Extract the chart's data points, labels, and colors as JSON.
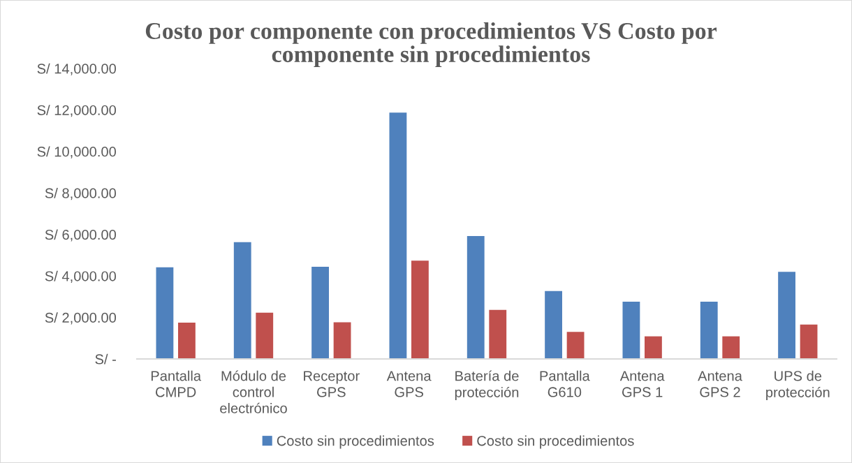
{
  "chart_data": {
    "type": "bar",
    "title": "Costo por componente con procedimientos VS Costo por\ncomponente sin procedimientos",
    "categories": [
      "Pantalla\nCMPD",
      "Módulo de\ncontrol\nelectrónico",
      "Receptor\nGPS",
      "Antena\nGPS",
      "Batería de\nprotección",
      "Pantalla\nG610",
      "Antena\nGPS 1",
      "Antena\nGPS 2",
      "UPS de\nprotección"
    ],
    "series": [
      {
        "name": "Costo sin procedimientos",
        "color": "#4f81bd",
        "values": [
          4420,
          5630,
          4440,
          11870,
          5920,
          3270,
          2760,
          2760,
          4200
        ]
      },
      {
        "name": "Costo sin procedimientos",
        "color": "#c0504d",
        "values": [
          1750,
          2230,
          1770,
          4740,
          2360,
          1300,
          1090,
          1090,
          1660
        ]
      }
    ],
    "ylim": [
      0,
      14000
    ],
    "yticks": [
      {
        "value": 0,
        "label": "S/ -"
      },
      {
        "value": 2000,
        "label": "S/ 2,000.00"
      },
      {
        "value": 4000,
        "label": "S/ 4,000.00"
      },
      {
        "value": 6000,
        "label": "S/ 6,000.00"
      },
      {
        "value": 8000,
        "label": "S/ 8,000.00"
      },
      {
        "value": 10000,
        "label": "S/ 10,000.00"
      },
      {
        "value": 12000,
        "label": "S/ 12,000.00"
      },
      {
        "value": 14000,
        "label": "S/ 14,000.00"
      }
    ],
    "legend": "bottom"
  }
}
